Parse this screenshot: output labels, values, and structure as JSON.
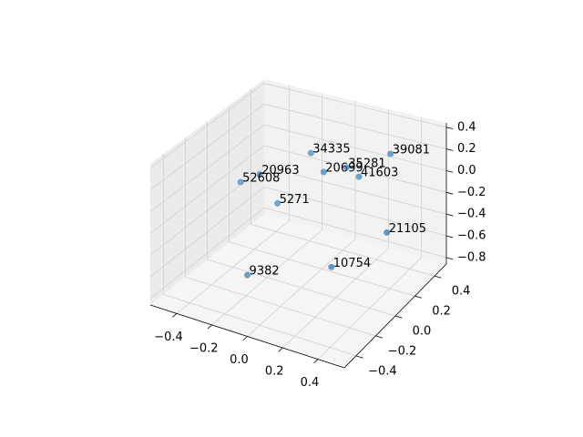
{
  "chart_data": {
    "type": "scatter3d",
    "labels": [
      "34335",
      "20963",
      "52608",
      "20699",
      "35281",
      "39081",
      "41603",
      "5271",
      "21105",
      "9382",
      "10754"
    ],
    "x": [
      -0.06,
      -0.23,
      -0.33,
      0.04,
      0.12,
      0.31,
      0.17,
      -0.17,
      0.36,
      -0.21,
      0.17
    ],
    "y": [
      0.19,
      -0.02,
      -0.04,
      0.15,
      0.24,
      0.36,
      0.28,
      0.05,
      0.24,
      -0.17,
      0.01
    ],
    "z": [
      0.2,
      0.1,
      0.0,
      0.1,
      0.1,
      0.2,
      0.0,
      -0.2,
      -0.4,
      -0.7,
      -0.6
    ],
    "color": "#1f77b4",
    "xlim": [
      -0.55,
      0.55
    ],
    "ylim": [
      -0.52,
      0.52
    ],
    "zlim": [
      -0.86,
      0.44
    ],
    "xticks": [
      {
        "value": -0.4,
        "label": "−0.4"
      },
      {
        "value": -0.2,
        "label": "−0.2"
      },
      {
        "value": 0,
        "label": "0.0"
      },
      0.2,
      0.4
    ],
    "yticks": [
      {
        "value": -0.4,
        "label": "−0.4"
      },
      {
        "value": -0.2,
        "label": "−0.2"
      },
      {
        "value": 0,
        "label": "0.0"
      },
      0.2,
      0.4
    ],
    "zticks": [
      {
        "value": -0.8,
        "label": "−0.8"
      },
      {
        "value": -0.6,
        "label": "−0.6"
      },
      {
        "value": -0.4,
        "label": "−0.4"
      },
      {
        "value": -0.2,
        "label": "−0.2"
      },
      {
        "value": 0,
        "label": "0.0"
      },
      0.2,
      0.4
    ],
    "grid": true
  }
}
